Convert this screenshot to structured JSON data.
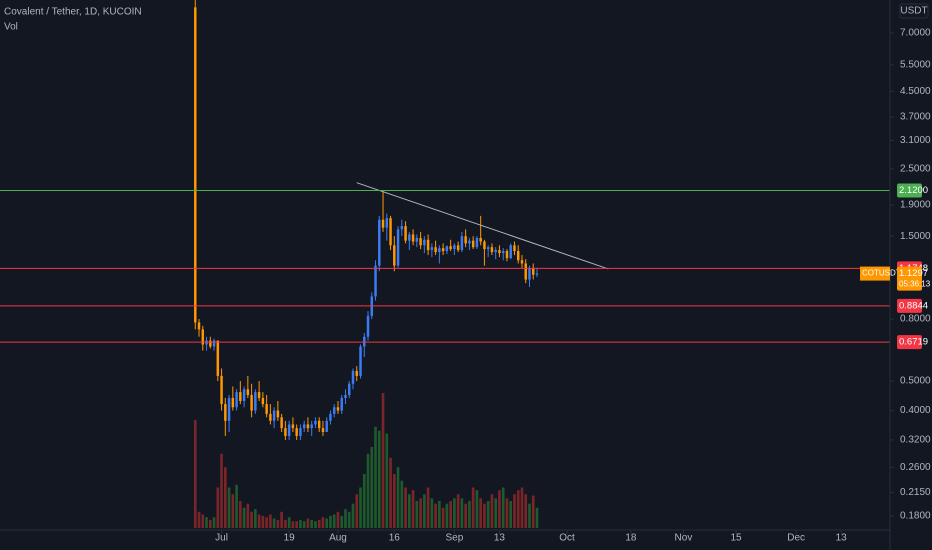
{
  "chart_data": {
    "type": "candlestick",
    "title": "Covalent / Tether, 1D, KUCOIN",
    "volume_label": "Vol",
    "currency": "USDT",
    "log_scale": true,
    "up_color": "#3b7cf4",
    "down_color": "#ff9800",
    "volume_up_color": "#1e5b2c",
    "volume_down_color": "#7c2529",
    "x": [
      "Jun 24",
      "Jun 25",
      "Jun 26",
      "Jun 27",
      "Jun 28",
      "Jun 29",
      "Jun 30",
      "Jul 1",
      "Jul 2",
      "Jul 3",
      "Jul 4",
      "Jul 5",
      "Jul 6",
      "Jul 7",
      "Jul 8",
      "Jul 9",
      "Jul 10",
      "Jul 11",
      "Jul 12",
      "Jul 13",
      "Jul 14",
      "Jul 15",
      "Jul 16",
      "Jul 17",
      "Jul 18",
      "Jul 19",
      "Jul 20",
      "Jul 21",
      "Jul 22",
      "Jul 23",
      "Jul 24",
      "Jul 25",
      "Jul 26",
      "Jul 27",
      "Jul 28",
      "Jul 29",
      "Jul 30",
      "Jul 31",
      "Aug 1",
      "Aug 2",
      "Aug 3",
      "Aug 4",
      "Aug 5",
      "Aug 6",
      "Aug 7",
      "Aug 8",
      "Aug 9",
      "Aug 10",
      "Aug 11",
      "Aug 12",
      "Aug 13",
      "Aug 14",
      "Aug 15",
      "Aug 16",
      "Aug 17",
      "Aug 18",
      "Aug 19",
      "Aug 20",
      "Aug 21",
      "Aug 22",
      "Aug 23",
      "Aug 24",
      "Aug 25",
      "Aug 26",
      "Aug 27",
      "Aug 28",
      "Aug 29",
      "Aug 30",
      "Aug 31",
      "Sep 1",
      "Sep 2",
      "Sep 3",
      "Sep 4",
      "Sep 5",
      "Sep 6",
      "Sep 7",
      "Sep 8",
      "Sep 9",
      "Sep 10",
      "Sep 11",
      "Sep 12",
      "Sep 13",
      "Sep 14",
      "Sep 15",
      "Sep 16",
      "Sep 17",
      "Sep 18",
      "Sep 19",
      "Sep 20",
      "Sep 21",
      "Sep 22",
      "Sep 23"
    ],
    "open": [
      8.5,
      0.78,
      0.74,
      0.66,
      0.68,
      0.65,
      0.68,
      0.52,
      0.42,
      0.37,
      0.44,
      0.41,
      0.46,
      0.43,
      0.47,
      0.45,
      0.4,
      0.46,
      0.44,
      0.42,
      0.39,
      0.37,
      0.4,
      0.38,
      0.35,
      0.33,
      0.36,
      0.35,
      0.33,
      0.35,
      0.36,
      0.35,
      0.36,
      0.37,
      0.35,
      0.34,
      0.37,
      0.39,
      0.41,
      0.4,
      0.44,
      0.45,
      0.49,
      0.54,
      0.52,
      0.65,
      0.7,
      0.82,
      0.95,
      1.2,
      1.7,
      1.6,
      1.72,
      1.4,
      1.2,
      1.58,
      1.62,
      1.45,
      1.52,
      1.44,
      1.48,
      1.4,
      1.46,
      1.35,
      1.38,
      1.33,
      1.37,
      1.34,
      1.39,
      1.36,
      1.4,
      1.35,
      1.5,
      1.42,
      1.45,
      1.38,
      1.48,
      1.44,
      1.36,
      1.38,
      1.33,
      1.35,
      1.32,
      1.34,
      1.27,
      1.4,
      1.34,
      1.25,
      1.22,
      1.08,
      1.18,
      1.12
    ],
    "high": [
      9.5,
      0.8,
      0.76,
      0.7,
      0.7,
      0.69,
      0.68,
      0.55,
      0.44,
      0.45,
      0.48,
      0.47,
      0.5,
      0.48,
      0.52,
      0.49,
      0.47,
      0.5,
      0.46,
      0.45,
      0.42,
      0.41,
      0.43,
      0.39,
      0.37,
      0.37,
      0.38,
      0.36,
      0.36,
      0.37,
      0.38,
      0.37,
      0.38,
      0.38,
      0.37,
      0.38,
      0.4,
      0.42,
      0.43,
      0.45,
      0.47,
      0.5,
      0.55,
      0.56,
      0.66,
      0.72,
      0.85,
      0.98,
      1.25,
      1.75,
      2.12,
      1.78,
      1.75,
      1.5,
      1.62,
      1.7,
      1.68,
      1.55,
      1.58,
      1.52,
      1.55,
      1.5,
      1.52,
      1.42,
      1.45,
      1.4,
      1.42,
      1.4,
      1.46,
      1.42,
      1.44,
      1.55,
      1.58,
      1.48,
      1.5,
      1.5,
      1.75,
      1.46,
      1.4,
      1.42,
      1.38,
      1.4,
      1.37,
      1.36,
      1.42,
      1.44,
      1.4,
      1.3,
      1.26,
      1.2,
      1.22,
      1.18
    ],
    "low": [
      0.74,
      0.7,
      0.63,
      0.63,
      0.64,
      0.63,
      0.5,
      0.4,
      0.33,
      0.34,
      0.4,
      0.4,
      0.42,
      0.41,
      0.44,
      0.38,
      0.39,
      0.43,
      0.41,
      0.38,
      0.36,
      0.35,
      0.37,
      0.34,
      0.32,
      0.32,
      0.34,
      0.32,
      0.32,
      0.34,
      0.34,
      0.33,
      0.35,
      0.34,
      0.33,
      0.34,
      0.36,
      0.38,
      0.39,
      0.39,
      0.42,
      0.44,
      0.47,
      0.5,
      0.51,
      0.6,
      0.68,
      0.8,
      0.92,
      1.15,
      1.55,
      1.45,
      1.35,
      1.15,
      1.18,
      1.5,
      1.42,
      1.35,
      1.4,
      1.38,
      1.36,
      1.32,
      1.3,
      1.28,
      1.3,
      1.22,
      1.3,
      1.31,
      1.34,
      1.3,
      1.33,
      1.33,
      1.38,
      1.35,
      1.36,
      1.36,
      1.4,
      1.2,
      1.28,
      1.3,
      1.26,
      1.28,
      1.25,
      1.24,
      1.26,
      1.3,
      1.22,
      1.18,
      1.05,
      1.02,
      1.08,
      1.1
    ],
    "close": [
      0.78,
      0.74,
      0.66,
      0.68,
      0.65,
      0.68,
      0.52,
      0.42,
      0.37,
      0.44,
      0.41,
      0.46,
      0.43,
      0.47,
      0.45,
      0.4,
      0.46,
      0.44,
      0.42,
      0.39,
      0.37,
      0.4,
      0.38,
      0.35,
      0.33,
      0.36,
      0.35,
      0.33,
      0.35,
      0.36,
      0.35,
      0.36,
      0.37,
      0.35,
      0.34,
      0.37,
      0.39,
      0.41,
      0.4,
      0.44,
      0.45,
      0.49,
      0.54,
      0.52,
      0.65,
      0.7,
      0.82,
      0.95,
      1.2,
      1.7,
      1.6,
      1.72,
      1.4,
      1.2,
      1.58,
      1.62,
      1.45,
      1.52,
      1.44,
      1.48,
      1.4,
      1.46,
      1.35,
      1.38,
      1.33,
      1.37,
      1.34,
      1.39,
      1.36,
      1.4,
      1.35,
      1.5,
      1.42,
      1.45,
      1.38,
      1.48,
      1.44,
      1.36,
      1.38,
      1.33,
      1.35,
      1.32,
      1.34,
      1.27,
      1.4,
      1.34,
      1.25,
      1.22,
      1.08,
      1.18,
      1.12,
      1.1297
    ],
    "volume": [
      80,
      12,
      10,
      8,
      6,
      8,
      30,
      55,
      45,
      30,
      25,
      32,
      20,
      15,
      18,
      12,
      14,
      10,
      9,
      8,
      10,
      7,
      6,
      12,
      6,
      8,
      5,
      5,
      6,
      5,
      7,
      6,
      5,
      6,
      8,
      7,
      9,
      10,
      12,
      9,
      14,
      12,
      18,
      25,
      30,
      40,
      55,
      60,
      75,
      72,
      100,
      70,
      52,
      40,
      45,
      35,
      30,
      25,
      28,
      20,
      22,
      25,
      30,
      22,
      18,
      20,
      15,
      18,
      20,
      22,
      25,
      22,
      18,
      20,
      30,
      28,
      22,
      18,
      20,
      25,
      22,
      28,
      30,
      22,
      20,
      25,
      28,
      30,
      25,
      18,
      24,
      15
    ],
    "xlim": [
      "May 3",
      "Dec 26"
    ],
    "xticks": [
      {
        "value": "Jul 1",
        "label": "Jul"
      },
      {
        "value": "Jul 19",
        "label": "19"
      },
      {
        "value": "Aug 1",
        "label": "Aug"
      },
      {
        "value": "Aug 16",
        "label": "16"
      },
      {
        "value": "Sep 1",
        "label": "Sep"
      },
      {
        "value": "Sep 13",
        "label": "13"
      },
      {
        "value": "Oct 1",
        "label": "Oct"
      },
      {
        "value": "Oct 18",
        "label": "18"
      },
      {
        "value": "Nov 1",
        "label": "Nov"
      },
      {
        "value": "Nov 15",
        "label": "15"
      },
      {
        "value": "Dec 1",
        "label": "Dec"
      },
      {
        "value": "Dec 13",
        "label": "13"
      }
    ],
    "ylim": [
      0.1617,
      8.99
    ],
    "yticks": [
      {
        "value": 7,
        "label": "7.0000"
      },
      {
        "value": 5.5,
        "label": "5.5000"
      },
      {
        "value": 4.5,
        "label": "4.5000"
      },
      {
        "value": 3.7,
        "label": "3.7000"
      },
      {
        "value": 3.1,
        "label": "3.1000"
      },
      {
        "value": 2.5,
        "label": "2.5000"
      },
      {
        "value": 1.9,
        "label": "1.9000"
      },
      {
        "value": 1.5,
        "label": "1.5000"
      },
      {
        "value": 0.8,
        "label": "0.8000"
      },
      {
        "value": 0.5,
        "label": "0.5000"
      },
      {
        "value": 0.4,
        "label": "0.4000"
      },
      {
        "value": 0.32,
        "label": "0.3200"
      },
      {
        "value": 0.26,
        "label": "0.2600"
      },
      {
        "value": 0.215,
        "label": "0.2150"
      },
      {
        "value": 0.18,
        "label": "0.1800"
      }
    ],
    "levels": [
      {
        "value": 2.12,
        "label": "2.1200",
        "color": "#4caf50"
      },
      {
        "value": 1.1748,
        "label": "1.1748",
        "color": "#f23645"
      },
      {
        "value": 0.8844,
        "label": "0.8844",
        "color": "#f23645"
      },
      {
        "value": 0.6719,
        "label": "0.6719",
        "color": "#f23645"
      }
    ],
    "trendline": {
      "from": {
        "x": "Aug 6",
        "y": 2.25
      },
      "to": {
        "x": "Oct 12",
        "y": 1.17
      },
      "color": "#b2b5be"
    },
    "last_price": {
      "symbol": "COTUSDT",
      "value": 1.1297,
      "countdown": "05:36:13",
      "color": "#ff9800"
    }
  }
}
